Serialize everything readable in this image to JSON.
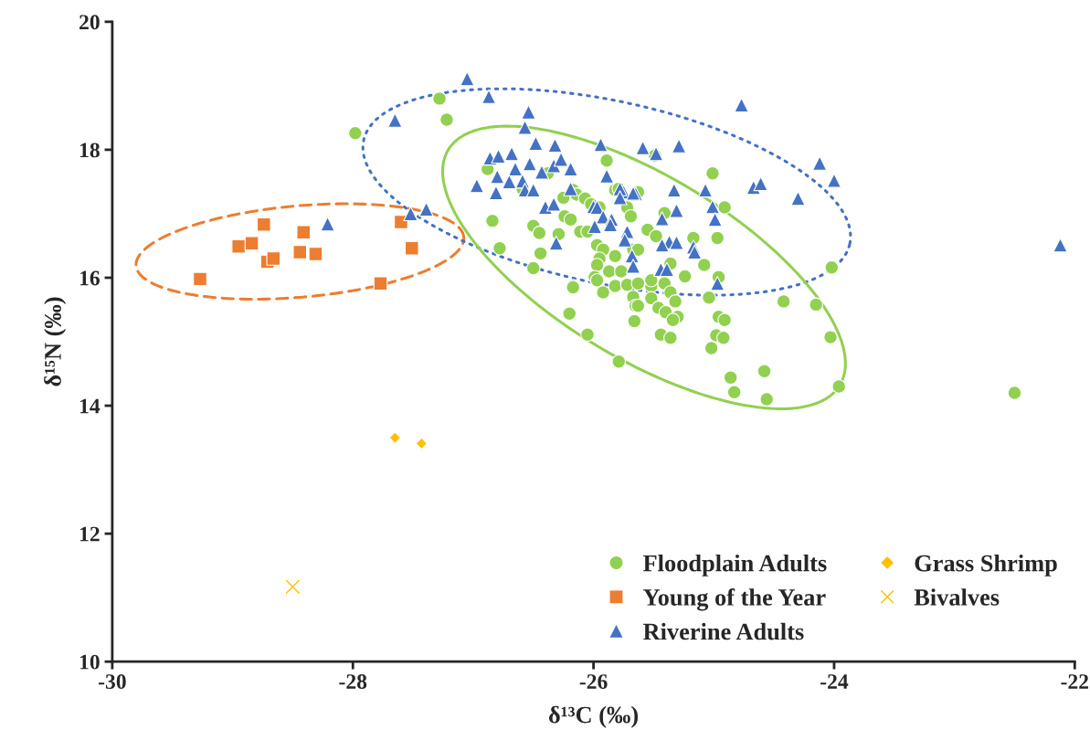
{
  "chart_data": {
    "type": "scatter",
    "xlabel": "δ¹³C (‰)",
    "ylabel": "δ¹⁵N (‰)",
    "xlim": [
      -30,
      -22
    ],
    "xticks": [
      -30,
      -28,
      -26,
      -24,
      -22
    ],
    "ylim": [
      10,
      20
    ],
    "yticks": [
      10,
      12,
      14,
      16,
      18,
      20
    ],
    "grid": false,
    "legend": "bottom right",
    "series": [
      {
        "name": "Floodplain Adults",
        "color": "#92d050",
        "marker": "circle",
        "x": [
          -27.98,
          -27.28,
          -27.22,
          -26.88,
          -26.38,
          -26.59,
          -25.89,
          -25.82,
          -26.84,
          -26.78,
          -26.5,
          -26.45,
          -26.44,
          -26.5,
          -26.29,
          -26.25,
          -26.17,
          -26.14,
          -26.07,
          -26.24,
          -26.19,
          -26.11,
          -26.05,
          -25.95,
          -26.02,
          -25.79,
          -25.72,
          -25.97,
          -25.92,
          -25.95,
          -25.82,
          -25.87,
          -25.97,
          -25.99,
          -26.17,
          -25.77,
          -25.67,
          -25.82,
          -26.17,
          -26.2,
          -26.05,
          -25.79,
          -25.97,
          -25.92,
          -25.67,
          -25.65,
          -25.66,
          -25.72,
          -25.63,
          -25.63,
          -25.52,
          -25.52,
          -25.46,
          -25.41,
          -25.36,
          -25.4,
          -25.32,
          -25.3,
          -25.34,
          -25.44,
          -25.36,
          -25.24,
          -25.04,
          -24.96,
          -24.91,
          -24.98,
          -24.92,
          -25.02,
          -24.86,
          -24.83,
          -24.58,
          -24.56,
          -24.42,
          -24.15,
          -24.03,
          -23.96,
          -25.01,
          -24.91,
          -24.97,
          -25.17,
          -25.08,
          -24.96,
          -24.02,
          -25.36,
          -25.41,
          -25.63,
          -25.69,
          -25.55,
          -25.48,
          -25.63,
          -25.52,
          -25.49,
          -22.5
        ],
        "values": [
          18.26,
          18.8,
          18.47,
          17.7,
          17.63,
          17.39,
          17.83,
          17.37,
          16.89,
          16.46,
          16.81,
          16.7,
          16.38,
          16.15,
          16.68,
          17.25,
          17.37,
          17.3,
          17.24,
          16.96,
          16.91,
          16.72,
          16.72,
          17.1,
          17.15,
          17.39,
          17.1,
          16.51,
          16.44,
          16.3,
          16.34,
          16.1,
          16.2,
          16.01,
          15.87,
          16.1,
          16.44,
          15.87,
          15.85,
          15.44,
          15.11,
          14.69,
          15.96,
          15.77,
          15.7,
          15.56,
          15.32,
          15.89,
          15.91,
          15.56,
          15.87,
          15.68,
          15.53,
          15.91,
          15.77,
          15.46,
          15.63,
          15.39,
          15.34,
          15.11,
          15.06,
          16.02,
          15.69,
          15.39,
          15.34,
          15.1,
          15.06,
          14.9,
          14.44,
          14.21,
          14.54,
          14.1,
          15.63,
          15.58,
          15.07,
          14.3,
          17.63,
          17.1,
          16.62,
          16.62,
          16.2,
          16.01,
          16.16,
          16.22,
          17.01,
          17.34,
          16.96,
          16.75,
          16.65,
          16.44,
          15.96,
          17.91,
          14.2
        ]
      },
      {
        "name": "Young of the Year",
        "color": "#ed7d31",
        "marker": "square",
        "x": [
          -29.27,
          -28.95,
          -28.84,
          -28.74,
          -28.71,
          -28.66,
          -28.44,
          -28.41,
          -28.31,
          -27.77,
          -27.6,
          -27.51
        ],
        "values": [
          15.98,
          16.49,
          16.54,
          16.83,
          16.25,
          16.3,
          16.4,
          16.71,
          16.37,
          15.91,
          16.87,
          16.46
        ]
      },
      {
        "name": "Riverine Adults",
        "color": "#4472c4",
        "marker": "triangle",
        "x": [
          -24.77,
          -25.59,
          -25.48,
          -25.29,
          -24.12,
          -24.0,
          -24.67,
          -24.61,
          -24.3,
          -25.33,
          -25.07,
          -25.01,
          -24.99,
          -25.31,
          -25.43,
          -25.65,
          -25.75,
          -25.72,
          -25.74,
          -25.37,
          -25.31,
          -25.43,
          -25.17,
          -25.16,
          -25.68,
          -25.67,
          -25.44,
          -25.39,
          -24.97,
          -26.54,
          -26.57,
          -26.48,
          -26.32,
          -25.94,
          -26.86,
          -26.79,
          -26.68,
          -26.65,
          -26.53,
          -26.43,
          -26.33,
          -26.27,
          -26.19,
          -26.8,
          -26.7,
          -26.59,
          -26.97,
          -26.81,
          -26.57,
          -26.5,
          -25.89,
          -26.19,
          -25.78,
          -25.67,
          -26.4,
          -26.33,
          -26.0,
          -25.97,
          -25.92,
          -25.85,
          -25.99,
          -25.86,
          -25.78,
          -26.31,
          -27.52,
          -27.39,
          -28.21,
          -27.65,
          -27.05,
          -26.87,
          -22.12
        ],
        "values": [
          18.7,
          18.03,
          17.94,
          18.06,
          17.79,
          17.52,
          17.41,
          17.47,
          17.24,
          17.37,
          17.37,
          17.11,
          16.91,
          17.05,
          16.92,
          17.31,
          17.34,
          16.72,
          16.59,
          16.56,
          16.55,
          16.51,
          16.48,
          16.4,
          16.34,
          16.18,
          16.13,
          16.13,
          15.91,
          18.59,
          18.35,
          18.1,
          18.07,
          18.08,
          17.87,
          17.9,
          17.94,
          17.7,
          17.78,
          17.65,
          17.75,
          17.85,
          17.7,
          17.58,
          17.5,
          17.51,
          17.44,
          17.33,
          17.37,
          17.37,
          17.59,
          17.39,
          17.39,
          17.32,
          17.1,
          17.15,
          17.11,
          17.1,
          16.95,
          16.91,
          16.8,
          16.83,
          17.25,
          16.54,
          17.0,
          17.07,
          16.84,
          18.46,
          19.11,
          18.83,
          16.51
        ]
      },
      {
        "name": "Grass Shrimp",
        "color": "#ffc000",
        "marker": "diamond",
        "x": [
          -27.65,
          -27.43
        ],
        "values": [
          13.5,
          13.41
        ]
      },
      {
        "name": "Bivalves",
        "color": "#ffc000",
        "marker": "cross",
        "x": [
          -28.5
        ],
        "values": [
          11.17
        ]
      }
    ]
  }
}
